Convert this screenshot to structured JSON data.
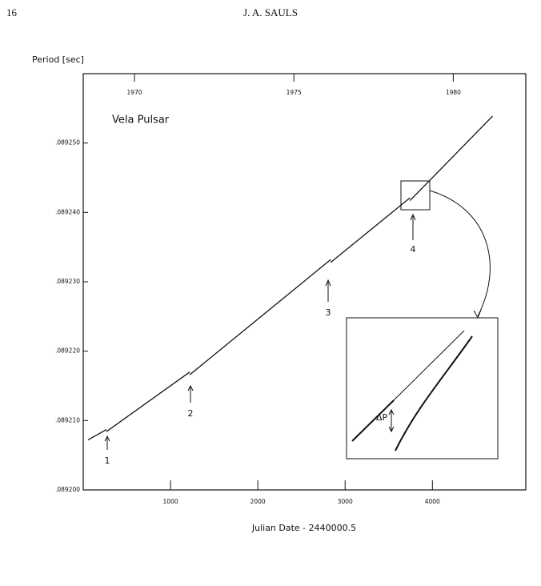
{
  "header": {
    "page_number": "16",
    "running_head": "J. A. SAULS"
  },
  "chart_data": {
    "type": "line",
    "title": "Vela Pulsar",
    "ylabel": "Period [sec]",
    "xlabel": "Julian Date - 2440000.5",
    "x": [
      55,
      265,
      null,
      265,
      1220,
      null,
      1220,
      2835,
      null,
      2835,
      3743,
      null,
      3743,
      4690
    ],
    "values": [
      0.0892072,
      0.0892087,
      null,
      0.0892084,
      0.089217,
      null,
      0.0892166,
      0.0892332,
      null,
      0.0892328,
      0.0892421,
      null,
      0.0892417,
      0.0892539
    ],
    "color": "#111",
    "xlim": [
      0,
      5070
    ],
    "ylim": [
      0.0892,
      0.08926
    ],
    "xticks": [
      1000,
      2000,
      3000,
      4000
    ],
    "x2ticks": [
      {
        "value": 587,
        "label": "1970"
      },
      {
        "value": 2413,
        "label": "1975"
      },
      {
        "value": 4239,
        "label": "1980"
      }
    ],
    "yticks": [
      {
        "value": 0.0892,
        "label": ".089200"
      },
      {
        "value": 0.08921,
        "label": ".089210"
      },
      {
        "value": 0.08922,
        "label": ".089220"
      },
      {
        "value": 0.08923,
        "label": ".089230"
      },
      {
        "value": 0.08924,
        "label": ".089240"
      },
      {
        "value": 0.08925,
        "label": ".089250"
      }
    ],
    "glitch_labels": [
      "1",
      "2",
      "3",
      "4"
    ],
    "inset_label": "ΔP"
  }
}
